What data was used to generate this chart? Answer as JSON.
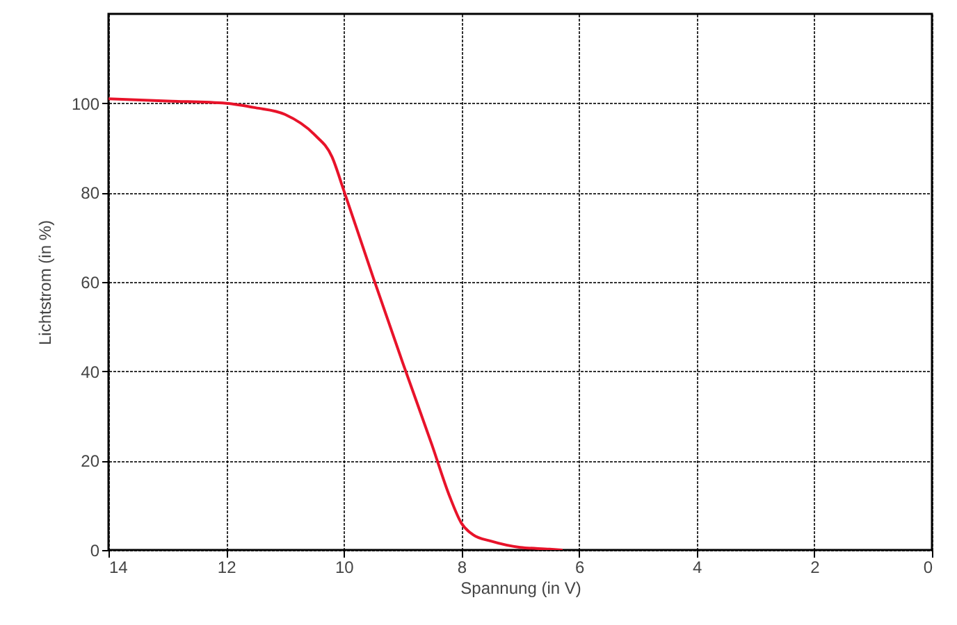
{
  "chart_data": {
    "type": "line",
    "xlabel": "Spannung (in V)",
    "ylabel": "Lichtstrom (in %)",
    "x": [
      14,
      13,
      12,
      11.5,
      11,
      10.5,
      10.2,
      10,
      9.5,
      9,
      8.5,
      8.2,
      8,
      7.8,
      7.5,
      7,
      6.5,
      6.3
    ],
    "series": [
      {
        "color": "#e8132a",
        "values": [
          101,
          100.5,
          100,
          99,
          97.5,
          93,
          88,
          80.5,
          61,
          42,
          23.5,
          12,
          6,
          3.4,
          2,
          0.6,
          0.2,
          0
        ]
      }
    ],
    "xlim": [
      14,
      0
    ],
    "xticks": [
      14,
      12,
      10,
      8,
      6,
      4,
      2,
      0
    ],
    "ylim": [
      0,
      120
    ],
    "yticks": [
      0,
      20,
      40,
      60,
      80,
      100
    ],
    "grid": true,
    "line_style": "solid",
    "marker": "none"
  }
}
